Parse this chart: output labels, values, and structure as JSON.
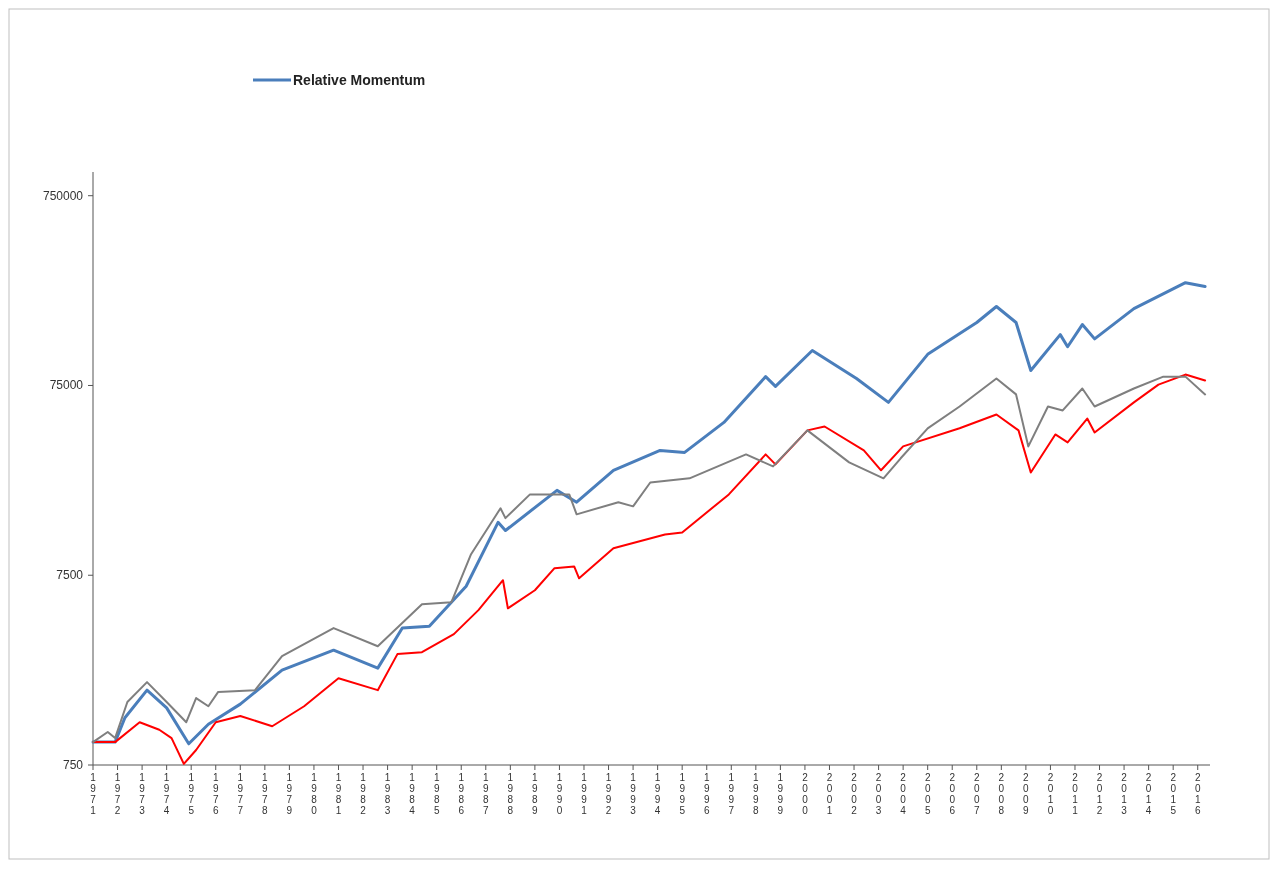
{
  "chart_data": {
    "type": "line",
    "log": true,
    "legend": "top",
    "grid": false,
    "ylim": [
      750,
      1000000
    ],
    "yticks": [
      750,
      7500,
      75000,
      750000
    ],
    "xlim": [
      1971,
      2016.5
    ],
    "xticks": [
      1971,
      1972,
      1973,
      1974,
      1975,
      1976,
      1977,
      1978,
      1979,
      1980,
      1981,
      1982,
      1983,
      1984,
      1985,
      1986,
      1987,
      1988,
      1989,
      1990,
      1991,
      1992,
      1993,
      1994,
      1995,
      1996,
      1997,
      1998,
      1999,
      2000,
      2001,
      2002,
      2003,
      2004,
      2005,
      2006,
      2007,
      2008,
      2009,
      2010,
      2011,
      2012,
      2013,
      2014,
      2015,
      2016
    ],
    "series": [
      {
        "name": "Relative Momentum",
        "color": "#4a7ebb",
        "x": [
          1971.0,
          1971.9,
          1972.3,
          1973.2,
          1974.0,
          1974.9,
          1975.7,
          1977.0,
          1978.7,
          1980.8,
          1982.6,
          1983.6,
          1984.7,
          1986.2,
          1987.5,
          1987.8,
          1989.9,
          1990.7,
          1992.2,
          1994.1,
          1995.1,
          1996.7,
          1998.4,
          1998.8,
          2000.3,
          2002.1,
          2003.4,
          2005.0,
          2007.0,
          2007.8,
          2008.6,
          2009.2,
          2010.4,
          2010.7,
          2011.3,
          2011.8,
          2013.4,
          2015.5,
          2016.3
        ],
        "values": [
          990,
          990,
          1330,
          1860,
          1500,
          970,
          1230,
          1570,
          2370,
          3020,
          2430,
          3950,
          4040,
          6560,
          14250,
          12900,
          21000,
          18200,
          26800,
          34100,
          33300,
          47900,
          83500,
          74200,
          114600,
          81600,
          61100,
          109400,
          161000,
          195500,
          161000,
          90000,
          139000,
          120000,
          157000,
          132000,
          190500,
          261000,
          249000
        ]
      },
      {
        "color": "#ff0000",
        "x": [
          1971.0,
          1971.9,
          1972.9,
          1973.7,
          1974.2,
          1974.7,
          1975.2,
          1976.0,
          1977.0,
          1978.3,
          1979.6,
          1981.0,
          1982.6,
          1983.4,
          1984.4,
          1985.7,
          1986.7,
          1987.7,
          1987.9,
          1989.0,
          1989.8,
          1990.6,
          1990.8,
          1992.2,
          1994.3,
          1995.0,
          1996.9,
          1998.4,
          1998.8,
          2000.1,
          2000.8,
          2002.4,
          2003.1,
          2004.0,
          2006.3,
          2007.8,
          2008.7,
          2009.2,
          2010.2,
          2010.7,
          2011.5,
          2011.8,
          2013.4,
          2014.4,
          2015.5,
          2016.3
        ],
        "values": [
          990,
          990,
          1260,
          1150,
          1040,
          760,
          900,
          1260,
          1360,
          1200,
          1530,
          2150,
          1860,
          2880,
          2950,
          3670,
          4910,
          7060,
          5020,
          6250,
          8170,
          8350,
          7230,
          10400,
          12300,
          12600,
          20000,
          32500,
          28800,
          43500,
          45600,
          34100,
          26800,
          35800,
          44600,
          52700,
          43500,
          26100,
          41400,
          37600,
          50200,
          42400,
          61100,
          75800,
          85600,
          79600
        ]
      },
      {
        "color": "#7f7f7f",
        "x": [
          1971.0,
          1971.6,
          1971.9,
          1972.4,
          1973.2,
          1974.0,
          1974.8,
          1975.2,
          1975.7,
          1976.1,
          1977.6,
          1978.7,
          1980.8,
          1982.6,
          1984.4,
          1985.6,
          1986.4,
          1987.6,
          1987.8,
          1988.8,
          1990.4,
          1990.7,
          1992.4,
          1993.0,
          1993.7,
          1995.3,
          1997.6,
          1998.7,
          2000.1,
          2001.8,
          2003.2,
          2003.9,
          2005.0,
          2006.3,
          2007.8,
          2008.6,
          2009.1,
          2009.9,
          2010.5,
          2011.3,
          2011.8,
          2013.4,
          2014.6,
          2015.5,
          2016.3
        ],
        "values": [
          990,
          1120,
          1040,
          1610,
          2050,
          1610,
          1260,
          1690,
          1530,
          1820,
          1860,
          2810,
          3950,
          3170,
          5270,
          5410,
          9680,
          16900,
          15000,
          20000,
          20000,
          15700,
          18200,
          17300,
          23100,
          24300,
          32500,
          28100,
          43500,
          29500,
          24300,
          31000,
          44600,
          58100,
          81600,
          67300,
          35800,
          58100,
          55400,
          72300,
          58100,
          72300,
          83500,
          83500,
          67300
        ]
      }
    ]
  }
}
